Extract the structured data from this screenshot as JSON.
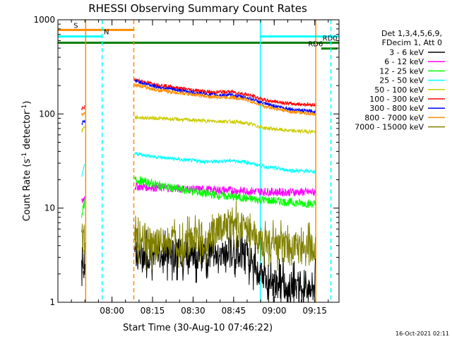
{
  "chart_data": {
    "type": "line",
    "title": "RHESSI Observing Summary Count Rates",
    "xlabel": "Start Time (30-Aug-10 07:46:22)",
    "ylabel_main": "Count Rate (s",
    "ylabel_sup1": "-1",
    "ylabel_mid": " detector",
    "ylabel_sup2": "-1",
    "ylabel_end": ")",
    "y_scale": "log",
    "ylim": [
      1,
      1000
    ],
    "xlim_minutes": [
      -6.37,
      97.6
    ],
    "x_ticks": [
      {
        "label": "08:00",
        "minute": 13.63
      },
      {
        "label": "08:15",
        "minute": 28.63
      },
      {
        "label": "08:30",
        "minute": 43.63
      },
      {
        "label": "08:45",
        "minute": 58.63
      },
      {
        "label": "09:00",
        "minute": 73.63
      },
      {
        "label": "09:15",
        "minute": 88.63
      }
    ],
    "y_ticks": [
      {
        "label": "1",
        "value": 1
      },
      {
        "label": "10",
        "value": 10
      },
      {
        "label": "100",
        "value": 100
      },
      {
        "label": "1000",
        "value": 1000
      }
    ],
    "legend": {
      "position": "right",
      "header": [
        "Det 1,3,4,5,6,9,",
        "FDecim 1, Att 0"
      ],
      "entries": [
        {
          "label": "3 - 6 keV",
          "color": "#000000"
        },
        {
          "label": "6 - 12 keV",
          "color": "#ff00ff"
        },
        {
          "label": "12 - 25 keV",
          "color": "#00ff00"
        },
        {
          "label": "25 - 50 keV",
          "color": "#00ffff"
        },
        {
          "label": "50 - 100 keV",
          "color": "#cccc00"
        },
        {
          "label": "100 - 300 keV",
          "color": "#ff0000"
        },
        {
          "label": "300 - 800 keV",
          "color": "#0000ff"
        },
        {
          "label": "800 - 7000 keV",
          "color": "#ff8c00"
        },
        {
          "label": "7000 - 15000 keV",
          "color": "#808000"
        }
      ]
    },
    "series": [
      {
        "name": "3 - 6 keV",
        "color": "#000000",
        "segments": [
          {
            "start": 2.4,
            "end": 3.0,
            "points": [
              [
                2.4,
                2.8
              ],
              [
                3.0,
                2.9
              ]
            ]
          },
          {
            "start": 3.0,
            "end": 3.6,
            "points": [
              [
                3.0,
                2.6
              ],
              [
                3.6,
                2.6
              ]
            ]
          },
          {
            "start": 22.0,
            "end": 88.9,
            "points": [
              [
                22.0,
                3.3
              ],
              [
                40,
                3.3
              ],
              [
                50,
                3.3
              ],
              [
                58,
                3.5
              ],
              [
                64,
                3.1
              ],
              [
                68,
                2.0
              ],
              [
                74,
                1.6
              ],
              [
                80,
                1.5
              ],
              [
                88.9,
                1.5
              ]
            ]
          }
        ]
      },
      {
        "name": "6 - 12 keV",
        "color": "#ff00ff",
        "segments": [
          {
            "start": 2.4,
            "end": 3.6,
            "points": [
              [
                2.4,
                11.5
              ],
              [
                3.0,
                12.5
              ],
              [
                3.6,
                13.0
              ]
            ]
          },
          {
            "start": 22.0,
            "end": 88.9,
            "points": [
              [
                22.0,
                17.0
              ],
              [
                40,
                16.0
              ],
              [
                60,
                15.3
              ],
              [
                75,
                14.8
              ],
              [
                88.9,
                14.8
              ]
            ]
          }
        ]
      },
      {
        "name": "12 - 25 keV",
        "color": "#00ff00",
        "segments": [
          {
            "start": 2.4,
            "end": 3.6,
            "points": [
              [
                2.4,
                8.5
              ],
              [
                3.0,
                10.0
              ],
              [
                3.6,
                11.5
              ]
            ]
          },
          {
            "start": 22.0,
            "end": 88.9,
            "points": [
              [
                22.0,
                20.0
              ],
              [
                35,
                16.5
              ],
              [
                50,
                14.0
              ],
              [
                65,
                12.5
              ],
              [
                80,
                11.5
              ],
              [
                88.9,
                11.0
              ]
            ]
          }
        ]
      },
      {
        "name": "25 - 50 keV",
        "color": "#00ffff",
        "segments": [
          {
            "start": 2.4,
            "end": 3.6,
            "points": [
              [
                2.4,
                22.0
              ],
              [
                3.0,
                25.0
              ],
              [
                3.6,
                30.0
              ]
            ]
          },
          {
            "start": 22.0,
            "end": 88.9,
            "points": [
              [
                22.0,
                38.0
              ],
              [
                30,
                35.0
              ],
              [
                40,
                32.5
              ],
              [
                50,
                31.0
              ],
              [
                58,
                32.0
              ],
              [
                64,
                30.5
              ],
              [
                70,
                27.5
              ],
              [
                80,
                25.0
              ],
              [
                88.9,
                24.5
              ]
            ]
          }
        ]
      },
      {
        "name": "50 - 100 keV",
        "color": "#cccc00",
        "segments": [
          {
            "start": 2.4,
            "end": 3.6,
            "points": [
              [
                2.4,
                65.0
              ],
              [
                3.0,
                70.0
              ],
              [
                3.6,
                75.0
              ]
            ]
          },
          {
            "start": 22.0,
            "end": 88.9,
            "points": [
              [
                22.0,
                92.0
              ],
              [
                30,
                90.0
              ],
              [
                40,
                87.0
              ],
              [
                50,
                84.0
              ],
              [
                58,
                83.0
              ],
              [
                64,
                79.0
              ],
              [
                70,
                71.0
              ],
              [
                80,
                66.0
              ],
              [
                88.9,
                65.0
              ]
            ]
          }
        ]
      },
      {
        "name": "100 - 300 keV",
        "color": "#ff0000",
        "segments": [
          {
            "start": 2.4,
            "end": 3.6,
            "points": [
              [
                2.4,
                110.0
              ],
              [
                3.0,
                115.0
              ],
              [
                3.6,
                118.0
              ]
            ]
          },
          {
            "start": 22.0,
            "end": 88.9,
            "points": [
              [
                22.0,
                230.0
              ],
              [
                30,
                205.0
              ],
              [
                40,
                185.0
              ],
              [
                50,
                170.0
              ],
              [
                58,
                172.0
              ],
              [
                64,
                160.0
              ],
              [
                70,
                140.0
              ],
              [
                80,
                128.0
              ],
              [
                88.9,
                125.0
              ]
            ]
          }
        ]
      },
      {
        "name": "300 - 800 keV",
        "color": "#0000ff",
        "segments": [
          {
            "start": 2.4,
            "end": 3.6,
            "points": [
              [
                2.4,
                80.0
              ],
              [
                3.0,
                82.0
              ],
              [
                3.6,
                84.0
              ]
            ]
          },
          {
            "start": 22.0,
            "end": 88.9,
            "points": [
              [
                22.0,
                225.0
              ],
              [
                30,
                195.0
              ],
              [
                40,
                175.0
              ],
              [
                50,
                160.0
              ],
              [
                58,
                158.0
              ],
              [
                64,
                148.0
              ],
              [
                70,
                128.0
              ],
              [
                80,
                112.0
              ],
              [
                88.9,
                105.0
              ]
            ]
          }
        ]
      },
      {
        "name": "800 - 7000 keV",
        "color": "#ff8c00",
        "segments": [
          {
            "start": 2.4,
            "end": 3.6,
            "points": [
              [
                2.4,
                100.0
              ],
              [
                3.0,
                102.0
              ],
              [
                3.6,
                104.0
              ]
            ]
          },
          {
            "start": 22.0,
            "end": 88.9,
            "points": [
              [
                22.0,
                205.0
              ],
              [
                30,
                180.0
              ],
              [
                40,
                165.0
              ],
              [
                50,
                152.0
              ],
              [
                58,
                150.0
              ],
              [
                64,
                140.0
              ],
              [
                70,
                120.0
              ],
              [
                80,
                105.0
              ],
              [
                88.9,
                100.0
              ]
            ]
          }
        ]
      },
      {
        "name": "7000 - 15000 keV",
        "color": "#808000",
        "segments": [
          {
            "start": 2.4,
            "end": 3.6,
            "points": [
              [
                2.4,
                4.6
              ],
              [
                3.0,
                5.0
              ],
              [
                3.6,
                5.0
              ]
            ]
          },
          {
            "start": 22.0,
            "end": 88.9,
            "points": [
              [
                22.0,
                4.6
              ],
              [
                40,
                4.2
              ],
              [
                50,
                5.2
              ],
              [
                56,
                6.8
              ],
              [
                60,
                7.0
              ],
              [
                64,
                5.8
              ],
              [
                68,
                4.6
              ],
              [
                74,
                4.0
              ],
              [
                80,
                3.7
              ],
              [
                88.9,
                3.6
              ]
            ]
          }
        ]
      }
    ],
    "vlines": [
      {
        "minute": 3.9,
        "color": "#ff8c00",
        "style": "solid"
      },
      {
        "minute": 10.0,
        "color": "#00ffff",
        "style": "dashed"
      },
      {
        "minute": 21.7,
        "color": "#ff8c00",
        "style": "dashed"
      },
      {
        "minute": 68.5,
        "color": "#00ffff",
        "style": "solid"
      },
      {
        "minute": 89.0,
        "color": "#ff8c00",
        "style": "solid"
      },
      {
        "minute": 94.6,
        "color": "#00ffff",
        "style": "dashed"
      }
    ],
    "state_bars": [
      {
        "label": "S",
        "color": "#ff8c00",
        "y": 780,
        "start": -6.37,
        "end": 21.7,
        "label_minute": -0.6
      },
      {
        "label": "N",
        "color": "#00ffff",
        "y": 665,
        "start": -6.37,
        "end": 10.0,
        "label_minute": 10.6
      },
      {
        "label": "N",
        "color": "#00ffff",
        "y": 665,
        "start": 68.5,
        "end": 97.6
      },
      {
        "label": "RD0",
        "color": "#008000",
        "y": 570,
        "start": -6.37,
        "end": 97.6,
        "label_minute": 91.5
      },
      {
        "label": "RD6",
        "color": "#008000",
        "y": 495,
        "start": 91.0,
        "end": 97.0,
        "label_minute": 86.2
      }
    ],
    "timestamp": "16-Oct-2021 02:11"
  }
}
